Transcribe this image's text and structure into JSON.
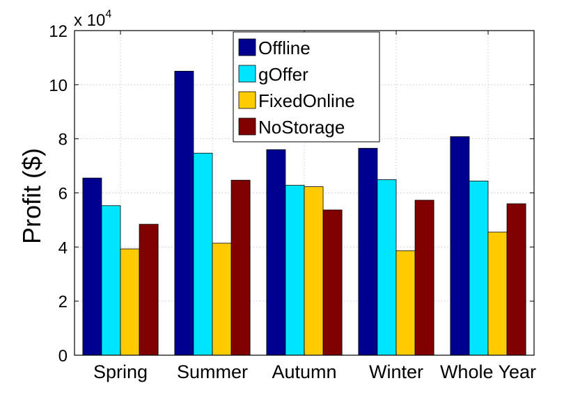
{
  "chart_data": {
    "type": "bar",
    "title": "",
    "xlabel": "",
    "ylabel": "Profit ($)",
    "ylim": [
      0,
      120000
    ],
    "y_ticks": [
      0,
      2,
      4,
      6,
      8,
      10,
      12
    ],
    "y_multiplier": "x 10",
    "y_exponent": "4",
    "grid": true,
    "legend_position": "top-center",
    "categories": [
      "Spring",
      "Summer",
      "Autumn",
      "Winter",
      "Whole Year"
    ],
    "series": [
      {
        "name": "Offline",
        "color": "#00008f",
        "values": [
          65500,
          105000,
          76000,
          76500,
          80800
        ]
      },
      {
        "name": "gOffer",
        "color": "#00e5ff",
        "values": [
          55300,
          74700,
          62800,
          64900,
          64400
        ]
      },
      {
        "name": "FixedOnline",
        "color": "#ffcc00",
        "values": [
          39300,
          41400,
          62300,
          38600,
          45500
        ]
      },
      {
        "name": "NoStorage",
        "color": "#800000",
        "values": [
          48400,
          64700,
          53700,
          57300,
          56000
        ]
      }
    ]
  }
}
